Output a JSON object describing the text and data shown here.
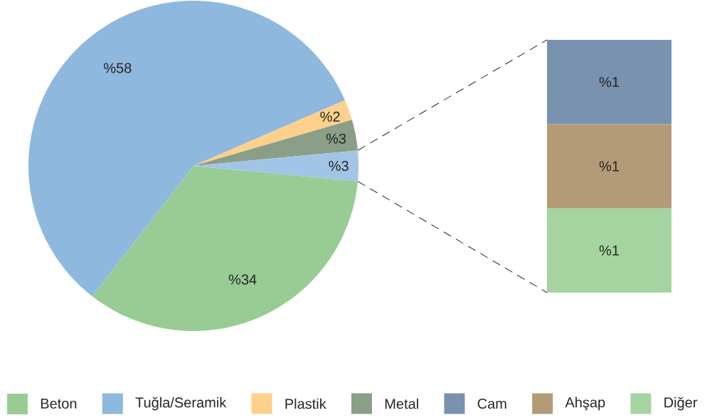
{
  "chart_data": [
    {
      "type": "pie",
      "categories": [
        "Beton",
        "Tuğla/Seramik",
        "Plastik",
        "Metal",
        null
      ],
      "values": [
        34,
        58,
        2,
        3,
        3
      ],
      "colors": [
        "#99cc95",
        "#8fb8de",
        "#fdd08c",
        "#8a9e88",
        "#a2c4e6"
      ],
      "value_labels": [
        "%34",
        "%58",
        "%2",
        "%3",
        "%3"
      ],
      "legend": "bottom"
    },
    {
      "type": "bar",
      "stacked": true,
      "categories": [
        null
      ],
      "legend": "bottom",
      "series": [
        {
          "name": "Diğer",
          "color": "#a5d4a0",
          "values": [
            1
          ],
          "value_labels": [
            "%1"
          ]
        },
        {
          "name": "Ahşap",
          "color": "#b39b78",
          "values": [
            1
          ],
          "value_labels": [
            "%1"
          ]
        },
        {
          "name": "Cam",
          "color": "#7892b0",
          "values": [
            1
          ],
          "value_labels": [
            "%1"
          ]
        }
      ]
    }
  ]
}
